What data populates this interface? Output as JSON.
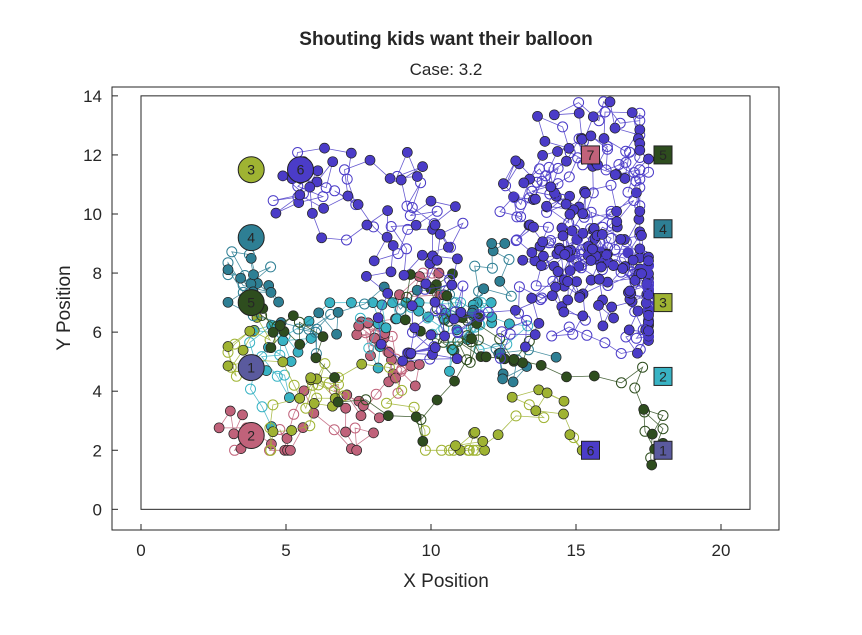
{
  "chart_data": {
    "type": "scatter",
    "title": "Shouting kids want their balloon",
    "subtitle": "Case: 3.2",
    "xlabel": "X Position",
    "ylabel": "Y Position",
    "xlim": [
      -1,
      22
    ],
    "ylim": [
      -0.7,
      14.3
    ],
    "xticks": [
      0,
      5,
      10,
      15,
      20
    ],
    "yticks": [
      0,
      2,
      4,
      6,
      8,
      10,
      12,
      14
    ],
    "arena": {
      "x": [
        0,
        21
      ],
      "y": [
        0,
        14
      ]
    },
    "grid": false,
    "legend": "none",
    "series": [
      {
        "label": "1",
        "color": "#5a5a9e",
        "marker": [
          18,
          2
        ]
      },
      {
        "label": "2",
        "color": "#38b3c4",
        "marker": [
          18,
          4.5
        ]
      },
      {
        "label": "3",
        "color": "#9fb332",
        "marker": [
          18,
          7
        ]
      },
      {
        "label": "4",
        "color": "#2e7f94",
        "marker": [
          18,
          9.5
        ]
      },
      {
        "label": "5",
        "color": "#2e4d1e",
        "marker": [
          18,
          12
        ]
      },
      {
        "label": "6",
        "color": "#4b3cc8",
        "marker": [
          15.5,
          2
        ]
      },
      {
        "label": "7",
        "color": "#c0627a",
        "marker": [
          15.5,
          12
        ]
      }
    ],
    "kids": [
      {
        "label": "1",
        "x": 3.8,
        "y": 4.8,
        "color": "#5a5a9e"
      },
      {
        "label": "2",
        "x": 3.8,
        "y": 2.5,
        "color": "#c0627a"
      },
      {
        "label": "3",
        "x": 3.8,
        "y": 11.5,
        "color": "#9fb332"
      },
      {
        "label": "4",
        "x": 3.8,
        "y": 9.2,
        "color": "#2e7f94"
      },
      {
        "label": "5",
        "x": 3.8,
        "y": 7.0,
        "color": "#2e4d1e"
      },
      {
        "label": "6",
        "x": 5.5,
        "y": 11.5,
        "color": "#4b3cc8"
      }
    ]
  }
}
